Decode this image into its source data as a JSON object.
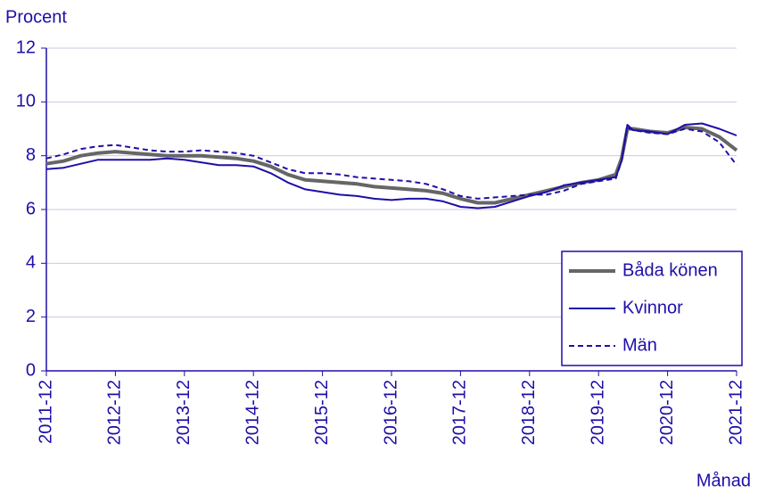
{
  "chart_data": {
    "type": "line",
    "y_label": "Procent",
    "x_label": "Månad",
    "x": [
      "2011-12",
      "2012-03",
      "2012-06",
      "2012-09",
      "2012-12",
      "2013-03",
      "2013-06",
      "2013-09",
      "2013-12",
      "2014-03",
      "2014-06",
      "2014-09",
      "2014-12",
      "2015-03",
      "2015-06",
      "2015-09",
      "2015-12",
      "2016-03",
      "2016-06",
      "2016-09",
      "2016-12",
      "2017-03",
      "2017-06",
      "2017-09",
      "2017-12",
      "2018-03",
      "2018-06",
      "2018-09",
      "2018-12",
      "2019-03",
      "2019-06",
      "2019-09",
      "2019-12",
      "2020-03",
      "2020-04",
      "2020-05",
      "2020-06",
      "2020-09",
      "2020-12",
      "2021-03",
      "2021-06",
      "2021-09",
      "2021-12"
    ],
    "xlim": [
      "2011-12",
      "2021-12"
    ],
    "xticks": [
      "2011-12",
      "2012-12",
      "2013-12",
      "2014-12",
      "2015-12",
      "2016-12",
      "2017-12",
      "2018-12",
      "2019-12",
      "2020-12",
      "2021-12"
    ],
    "ylim": [
      0,
      12
    ],
    "yticks": [
      0,
      2,
      4,
      6,
      8,
      10,
      12
    ],
    "grid": true,
    "legend": "lower right",
    "series": [
      {
        "name": "Båda könen",
        "color": "#666666",
        "style": "solid",
        "width": 4,
        "values": [
          7.7,
          7.8,
          8.0,
          8.1,
          8.15,
          8.1,
          8.05,
          8.0,
          8.0,
          8.0,
          7.95,
          7.9,
          7.8,
          7.6,
          7.3,
          7.1,
          7.05,
          7.0,
          6.95,
          6.85,
          6.8,
          6.75,
          6.7,
          6.6,
          6.4,
          6.25,
          6.25,
          6.4,
          6.55,
          6.7,
          6.85,
          7.0,
          7.1,
          7.3,
          7.9,
          9.0,
          9.0,
          8.9,
          8.85,
          9.05,
          9.0,
          8.7,
          8.2
        ]
      },
      {
        "name": "Kvinnor",
        "color": "#1e0fa8",
        "style": "solid",
        "width": 2,
        "values": [
          7.5,
          7.55,
          7.7,
          7.85,
          7.85,
          7.85,
          7.85,
          7.9,
          7.85,
          7.75,
          7.65,
          7.65,
          7.6,
          7.35,
          7.0,
          6.75,
          6.65,
          6.55,
          6.5,
          6.4,
          6.35,
          6.4,
          6.4,
          6.3,
          6.1,
          6.05,
          6.1,
          6.3,
          6.5,
          6.65,
          6.9,
          7.0,
          7.1,
          7.2,
          7.8,
          9.15,
          8.95,
          8.9,
          8.8,
          9.15,
          9.2,
          9.0,
          8.75
        ]
      },
      {
        "name": "Män",
        "color": "#1e0fa8",
        "style": "dashed",
        "width": 2,
        "values": [
          7.9,
          8.05,
          8.25,
          8.35,
          8.4,
          8.3,
          8.2,
          8.15,
          8.15,
          8.2,
          8.15,
          8.1,
          8.0,
          7.75,
          7.5,
          7.35,
          7.35,
          7.3,
          7.2,
          7.15,
          7.1,
          7.05,
          6.95,
          6.75,
          6.5,
          6.4,
          6.45,
          6.5,
          6.55,
          6.55,
          6.7,
          6.95,
          7.05,
          7.15,
          7.8,
          9.05,
          8.95,
          8.85,
          8.8,
          9.0,
          8.9,
          8.5,
          7.65
        ]
      }
    ]
  }
}
